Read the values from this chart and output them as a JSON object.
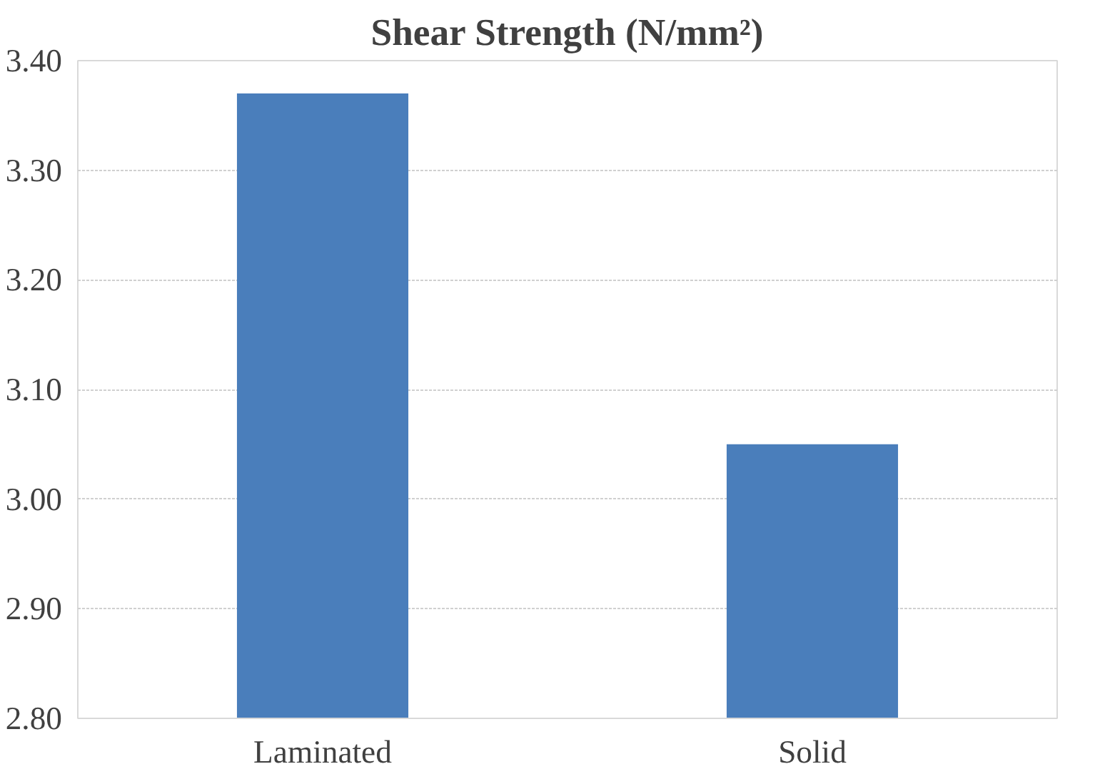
{
  "chart_data": {
    "type": "bar",
    "title": "Shear Strength (N/mm²)",
    "categories": [
      "Laminated",
      "Solid"
    ],
    "values": [
      3.37,
      3.05
    ],
    "color": "#4a7ebb",
    "ylim": [
      2.8,
      3.4
    ],
    "yticks": [
      {
        "value": 2.8,
        "label": "2.80"
      },
      {
        "value": 2.9,
        "label": "2.90"
      },
      {
        "value": 3.0,
        "label": "3.00"
      },
      {
        "value": 3.1,
        "label": "3.10"
      },
      {
        "value": 3.2,
        "label": "3.20"
      },
      {
        "value": 3.3,
        "label": "3.30"
      },
      {
        "value": 3.4,
        "label": "3.40"
      }
    ],
    "grid": "y"
  }
}
